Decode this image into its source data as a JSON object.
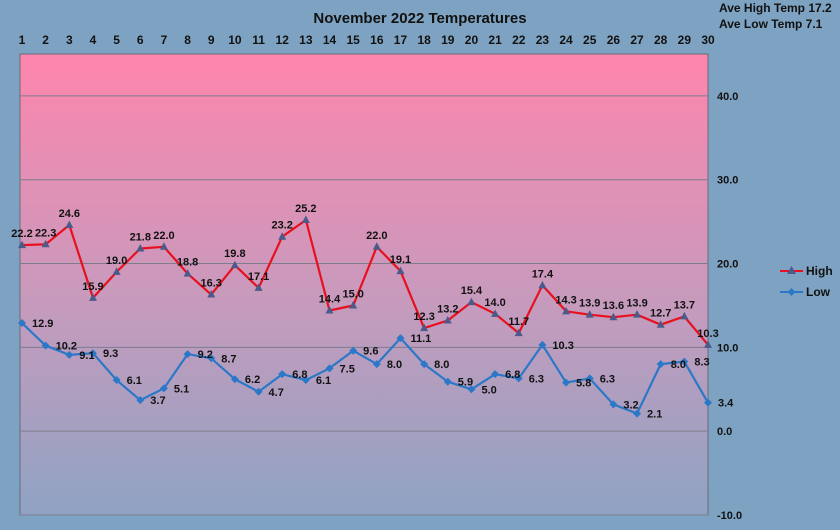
{
  "header": {
    "title": "November 2022 Temperatures",
    "ave_high": "Ave High Temp 17.2",
    "ave_low": "Ave Low Temp 7.1"
  },
  "colors": {
    "high": "#e8101e",
    "low": "#2b78c8",
    "marker": "#4a5a8a",
    "bg_top": "#ff85ad",
    "bg_bottom": "#8fa3c3",
    "page_bg": "#7ea3c2"
  },
  "chart_data": {
    "type": "line",
    "title": "November 2022 Temperatures",
    "x": [
      1,
      2,
      3,
      4,
      5,
      6,
      7,
      8,
      9,
      10,
      11,
      12,
      13,
      14,
      15,
      16,
      17,
      18,
      19,
      20,
      21,
      22,
      23,
      24,
      25,
      26,
      27,
      28,
      29,
      30
    ],
    "series": [
      {
        "name": "High",
        "values": [
          22.2,
          22.3,
          24.6,
          15.9,
          19.0,
          21.8,
          22.0,
          18.8,
          16.3,
          19.8,
          17.1,
          23.2,
          25.2,
          14.4,
          15.0,
          22.0,
          19.1,
          12.3,
          13.2,
          15.4,
          14.0,
          11.7,
          17.4,
          14.3,
          13.9,
          13.6,
          13.9,
          12.7,
          13.7,
          10.3
        ]
      },
      {
        "name": "Low",
        "values": [
          12.9,
          10.2,
          9.1,
          9.3,
          6.1,
          3.7,
          5.1,
          9.2,
          8.7,
          6.2,
          4.7,
          6.8,
          6.1,
          7.5,
          9.6,
          8.0,
          11.1,
          8.0,
          5.9,
          5.0,
          6.8,
          6.3,
          10.3,
          5.8,
          6.3,
          3.2,
          2.1,
          8.0,
          8.3,
          3.4
        ]
      }
    ],
    "ylim": [
      -10,
      45
    ],
    "yticks": [
      "40.0",
      "30.0",
      "20.0",
      "10.0",
      "0.0",
      "-10.0"
    ],
    "ytick_values": [
      40,
      30,
      20,
      10,
      0,
      -10
    ],
    "x_axis_position": "top",
    "y_axis_position": "right",
    "grid": true,
    "legend_placement": "right"
  }
}
